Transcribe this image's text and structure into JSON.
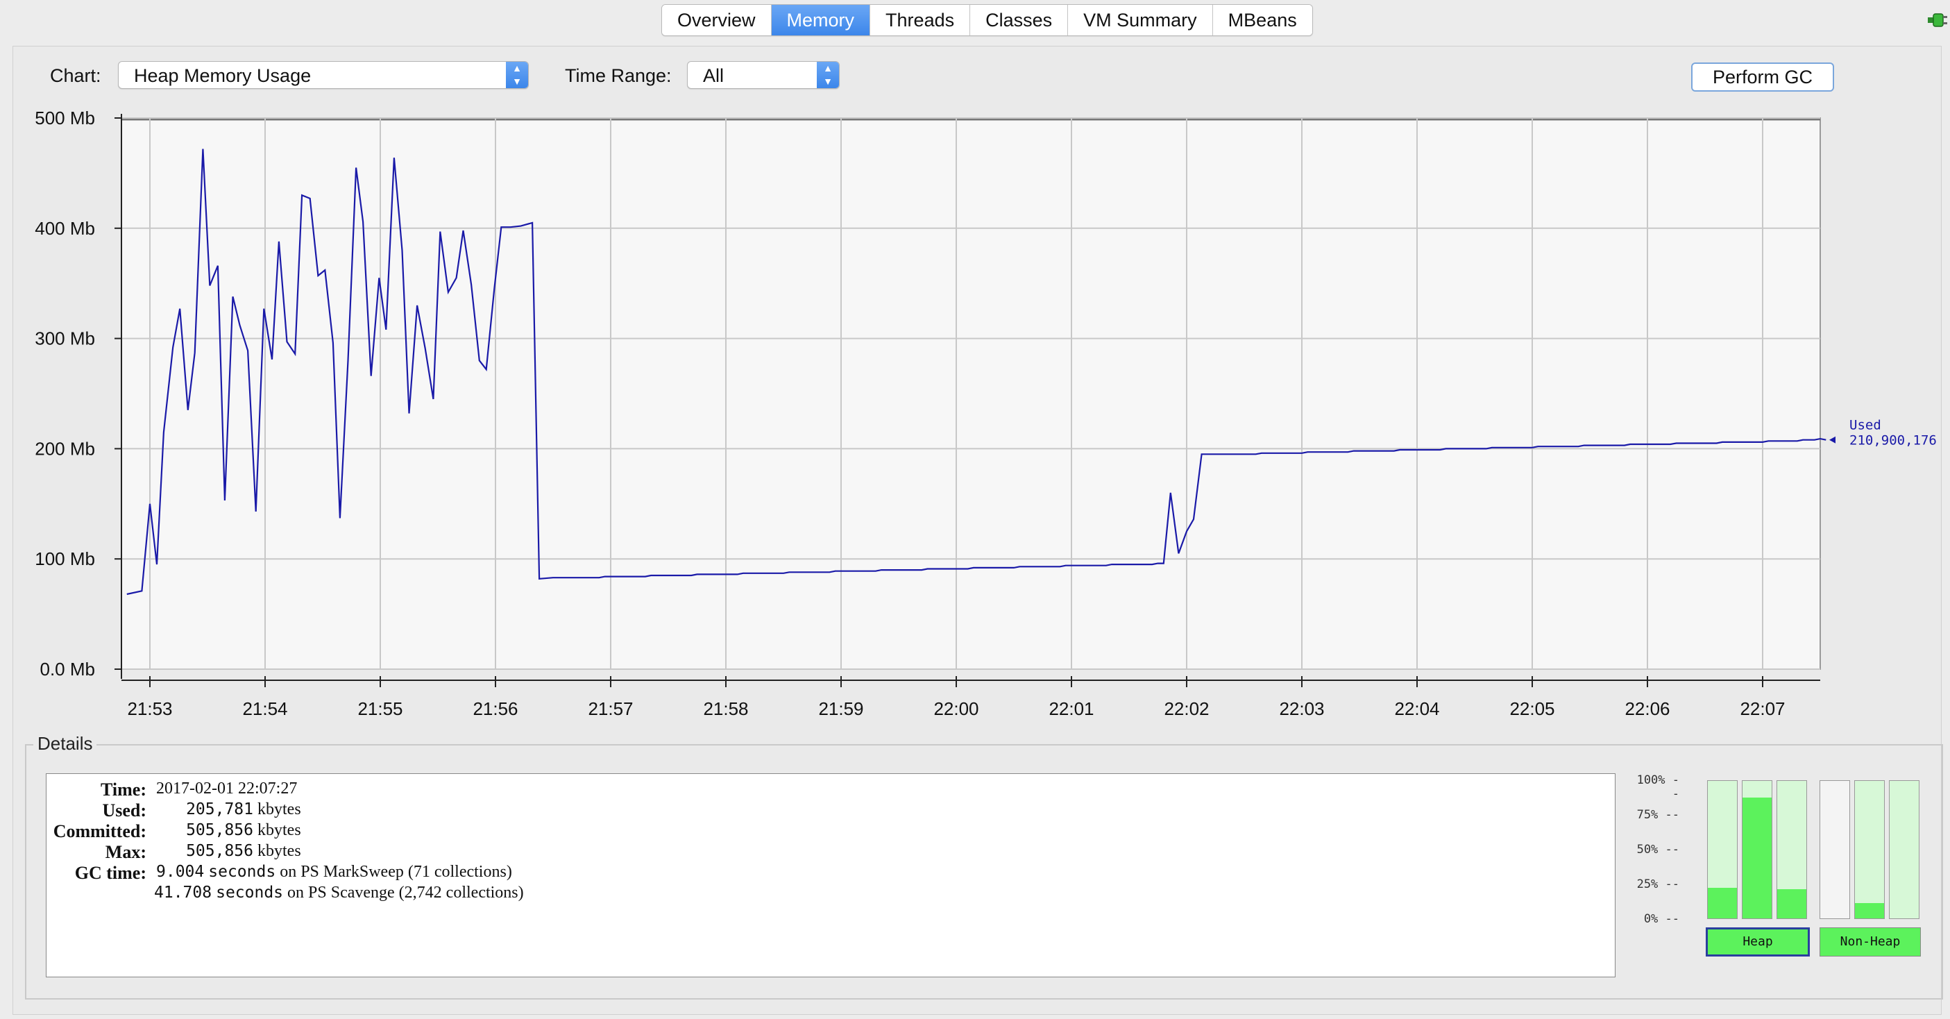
{
  "tabs": [
    {
      "label": "Overview",
      "active": false
    },
    {
      "label": "Memory",
      "active": true
    },
    {
      "label": "Threads",
      "active": false
    },
    {
      "label": "Classes",
      "active": false
    },
    {
      "label": "VM Summary",
      "active": false
    },
    {
      "label": "MBeans",
      "active": false
    }
  ],
  "controls": {
    "chart_label": "Chart:",
    "chart_value": "Heap Memory Usage",
    "time_range_label": "Time Range:",
    "time_range_value": "All",
    "gc_button": "Perform GC"
  },
  "chart_data": {
    "type": "line",
    "yticks": [
      "500 Mb",
      "400 Mb",
      "300 Mb",
      "200 Mb",
      "100 Mb",
      "0.0 Mb"
    ],
    "ylim": [
      0,
      500
    ],
    "xticks": [
      "21:53",
      "21:54",
      "21:55",
      "21:56",
      "21:57",
      "21:58",
      "21:59",
      "22:00",
      "22:01",
      "22:02",
      "22:03",
      "22:04",
      "22:05",
      "22:06",
      "22:07"
    ],
    "xlim_minutes": [
      -0.25,
      14.6
    ],
    "grid": true,
    "series_label": "Used",
    "series_value": "210,900,176",
    "series_color": "#1a1aa8",
    "points": [
      [
        -0.2,
        68
      ],
      [
        -0.07,
        71
      ],
      [
        0,
        150
      ],
      [
        0.06,
        95
      ],
      [
        0.12,
        215
      ],
      [
        0.2,
        292
      ],
      [
        0.26,
        327
      ],
      [
        0.33,
        235
      ],
      [
        0.39,
        287
      ],
      [
        0.46,
        472
      ],
      [
        0.52,
        348
      ],
      [
        0.59,
        366
      ],
      [
        0.65,
        153
      ],
      [
        0.72,
        338
      ],
      [
        0.78,
        312
      ],
      [
        0.85,
        289
      ],
      [
        0.92,
        143
      ],
      [
        0.99,
        327
      ],
      [
        1.06,
        281
      ],
      [
        1.12,
        388
      ],
      [
        1.19,
        297
      ],
      [
        1.26,
        286
      ],
      [
        1.32,
        430
      ],
      [
        1.39,
        427
      ],
      [
        1.46,
        357
      ],
      [
        1.52,
        362
      ],
      [
        1.59,
        296
      ],
      [
        1.65,
        137
      ],
      [
        1.72,
        280
      ],
      [
        1.79,
        455
      ],
      [
        1.85,
        406
      ],
      [
        1.92,
        266
      ],
      [
        1.99,
        355
      ],
      [
        2.05,
        308
      ],
      [
        2.12,
        464
      ],
      [
        2.19,
        380
      ],
      [
        2.25,
        232
      ],
      [
        2.32,
        330
      ],
      [
        2.39,
        291
      ],
      [
        2.46,
        245
      ],
      [
        2.52,
        397
      ],
      [
        2.59,
        342
      ],
      [
        2.66,
        355
      ],
      [
        2.72,
        398
      ],
      [
        2.79,
        349
      ],
      [
        2.86,
        280
      ],
      [
        2.92,
        272
      ],
      [
        2.99,
        345
      ],
      [
        3.05,
        401
      ],
      [
        3.13,
        401
      ],
      [
        3.22,
        402
      ],
      [
        3.32,
        405
      ],
      [
        3.38,
        82
      ],
      [
        3.5,
        83
      ],
      [
        3.9,
        83
      ],
      [
        3.95,
        84
      ],
      [
        4.3,
        84
      ],
      [
        4.35,
        85
      ],
      [
        4.7,
        85
      ],
      [
        4.75,
        86
      ],
      [
        5.1,
        86
      ],
      [
        5.15,
        87
      ],
      [
        5.5,
        87
      ],
      [
        5.55,
        88
      ],
      [
        5.9,
        88
      ],
      [
        5.95,
        89
      ],
      [
        6.3,
        89
      ],
      [
        6.35,
        90
      ],
      [
        6.7,
        90
      ],
      [
        6.75,
        91
      ],
      [
        7.1,
        91
      ],
      [
        7.15,
        92
      ],
      [
        7.5,
        92
      ],
      [
        7.55,
        93
      ],
      [
        7.9,
        93
      ],
      [
        7.95,
        94
      ],
      [
        8.3,
        94
      ],
      [
        8.35,
        95
      ],
      [
        8.7,
        95
      ],
      [
        8.75,
        96
      ],
      [
        8.8,
        96
      ],
      [
        8.86,
        160
      ],
      [
        8.93,
        105
      ],
      [
        9.0,
        125
      ],
      [
        9.06,
        136
      ],
      [
        9.13,
        195
      ],
      [
        9.6,
        195
      ],
      [
        9.65,
        196
      ],
      [
        10.0,
        196
      ],
      [
        10.05,
        197
      ],
      [
        10.4,
        197
      ],
      [
        10.45,
        198
      ],
      [
        10.8,
        198
      ],
      [
        10.85,
        199
      ],
      [
        11.2,
        199
      ],
      [
        11.25,
        200
      ],
      [
        11.6,
        200
      ],
      [
        11.65,
        201
      ],
      [
        12.0,
        201
      ],
      [
        12.05,
        202
      ],
      [
        12.4,
        202
      ],
      [
        12.45,
        203
      ],
      [
        12.8,
        203
      ],
      [
        12.85,
        204
      ],
      [
        13.2,
        204
      ],
      [
        13.25,
        205
      ],
      [
        13.6,
        205
      ],
      [
        13.65,
        206
      ],
      [
        14.0,
        206
      ],
      [
        14.05,
        207
      ],
      [
        14.3,
        207
      ],
      [
        14.35,
        208
      ],
      [
        14.45,
        208
      ],
      [
        14.5,
        209
      ],
      [
        14.55,
        208
      ]
    ]
  },
  "details": {
    "title": "Details",
    "time_label": "Time:",
    "time_value": "2017-02-01 22:07:27",
    "used_label": "Used:",
    "used_value": "205,781",
    "committed_label": "Committed:",
    "committed_value": "505,856",
    "max_label": "Max:",
    "max_value": "505,856",
    "unit": "kbytes",
    "gc_label": "GC time:",
    "gc1_value": "9.004",
    "gc1_text": "on PS MarkSweep (71 collections)",
    "gc2_value": "41.708",
    "gc2_text": "on PS Scavenge (2,742 collections)",
    "seconds": "seconds"
  },
  "pools": {
    "pct_labels": [
      "100% --",
      "75% --",
      "50% --",
      "25% --",
      "0% --"
    ],
    "heap_levels": [
      0.22,
      0.88,
      0.21
    ],
    "nonheap_levels": [
      0.0,
      0.11,
      0.0
    ],
    "heap_label": "Heap",
    "nonheap_label": "Non-Heap"
  }
}
